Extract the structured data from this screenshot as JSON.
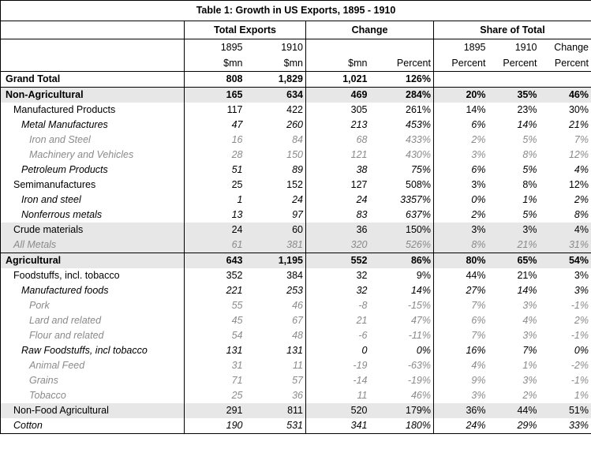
{
  "title": "Table 1: Growth in US Exports, 1895 - 1910",
  "group_headers": [
    "Total Exports",
    "Change",
    "Share of Total"
  ],
  "sub_headers_top": [
    "1895",
    "1910",
    "",
    "",
    "1895",
    "1910",
    "Change"
  ],
  "sub_headers_bottom": [
    "$mn",
    "$mn",
    "$mn",
    "Percent",
    "Percent",
    "Percent",
    "Percent"
  ],
  "rows": [
    {
      "label": "Grand Total",
      "values": [
        "808",
        "1,829",
        "1,021",
        "126%",
        "",
        "",
        ""
      ]
    },
    {
      "label": "Non-Agricultural",
      "values": [
        "165",
        "634",
        "469",
        "284%",
        "20%",
        "35%",
        "46%"
      ]
    },
    {
      "label": "Manufactured Products",
      "values": [
        "117",
        "422",
        "305",
        "261%",
        "14%",
        "23%",
        "30%"
      ]
    },
    {
      "label": "Metal Manufactures",
      "values": [
        "47",
        "260",
        "213",
        "453%",
        "6%",
        "14%",
        "21%"
      ]
    },
    {
      "label": "Iron and Steel",
      "values": [
        "16",
        "84",
        "68",
        "433%",
        "2%",
        "5%",
        "7%"
      ]
    },
    {
      "label": "Machinery and Vehicles",
      "values": [
        "28",
        "150",
        "121",
        "430%",
        "3%",
        "8%",
        "12%"
      ]
    },
    {
      "label": "Petroleum Products",
      "values": [
        "51",
        "89",
        "38",
        "75%",
        "6%",
        "5%",
        "4%"
      ]
    },
    {
      "label": "Semimanufactures",
      "values": [
        "25",
        "152",
        "127",
        "508%",
        "3%",
        "8%",
        "12%"
      ]
    },
    {
      "label": "Iron and steel",
      "values": [
        "1",
        "24",
        "24",
        "3357%",
        "0%",
        "1%",
        "2%"
      ]
    },
    {
      "label": "Nonferrous metals",
      "values": [
        "13",
        "97",
        "83",
        "637%",
        "2%",
        "5%",
        "8%"
      ]
    },
    {
      "label": "Crude materials",
      "values": [
        "24",
        "60",
        "36",
        "150%",
        "3%",
        "3%",
        "4%"
      ]
    },
    {
      "label": "All Metals",
      "values": [
        "61",
        "381",
        "320",
        "526%",
        "8%",
        "21%",
        "31%"
      ]
    },
    {
      "label": "Agricultural",
      "values": [
        "643",
        "1,195",
        "552",
        "86%",
        "80%",
        "65%",
        "54%"
      ]
    },
    {
      "label": "Foodstuffs, incl. tobacco",
      "values": [
        "352",
        "384",
        "32",
        "9%",
        "44%",
        "21%",
        "3%"
      ]
    },
    {
      "label": "Manufactured foods",
      "values": [
        "221",
        "253",
        "32",
        "14%",
        "27%",
        "14%",
        "3%"
      ]
    },
    {
      "label": "Pork",
      "values": [
        "55",
        "46",
        "-8",
        "-15%",
        "7%",
        "3%",
        "-1%"
      ]
    },
    {
      "label": "Lard and related",
      "values": [
        "45",
        "67",
        "21",
        "47%",
        "6%",
        "4%",
        "2%"
      ]
    },
    {
      "label": "Flour and related",
      "values": [
        "54",
        "48",
        "-6",
        "-11%",
        "7%",
        "3%",
        "-1%"
      ]
    },
    {
      "label": "Raw Foodstuffs, incl tobacco",
      "values": [
        "131",
        "131",
        "0",
        "0%",
        "16%",
        "7%",
        "0%"
      ]
    },
    {
      "label": "Animal Feed",
      "values": [
        "31",
        "11",
        "-19",
        "-63%",
        "4%",
        "1%",
        "-2%"
      ]
    },
    {
      "label": "Grains",
      "values": [
        "71",
        "57",
        "-14",
        "-19%",
        "9%",
        "3%",
        "-1%"
      ]
    },
    {
      "label": "Tobacco",
      "values": [
        "25",
        "36",
        "11",
        "46%",
        "3%",
        "2%",
        "1%"
      ]
    },
    {
      "label": "Non-Food Agricultural",
      "values": [
        "291",
        "811",
        "520",
        "179%",
        "36%",
        "44%",
        "51%"
      ]
    },
    {
      "label": "Cotton",
      "values": [
        "190",
        "531",
        "341",
        "180%",
        "24%",
        "29%",
        "33%"
      ]
    }
  ],
  "colors": {
    "shade": "#e7e7e7",
    "muted_text": "#8a8a8a"
  }
}
